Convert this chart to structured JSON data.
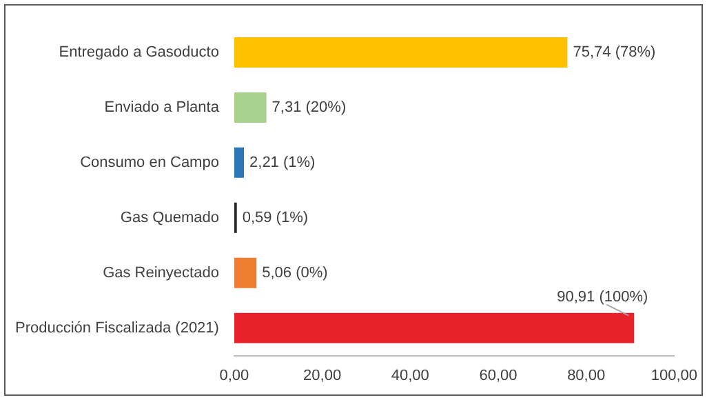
{
  "chart_data": {
    "type": "bar",
    "orientation": "horizontal",
    "categories": [
      "Entregado a Gasoducto",
      "Enviado a Planta",
      "Consumo en Campo",
      "Gas Quemado",
      "Gas Reinyectado",
      "Producción Fiscalizada (2021)"
    ],
    "values": [
      75.74,
      7.31,
      2.21,
      0.59,
      5.06,
      90.91
    ],
    "colors": [
      "#ffc000",
      "#a9d18e",
      "#2e75b6",
      "#262626",
      "#ed7d31",
      "#e8222a"
    ],
    "value_labels": [
      "75,74 (78%)",
      "7,31 (20%)",
      "2,21 (1%)",
      "0,59 (1%)",
      "5,06 (0%)",
      "90,91 (100%)"
    ],
    "xlim": [
      0,
      100
    ],
    "xticks": [
      {
        "value": 0,
        "label": "0,00"
      },
      {
        "value": 20,
        "label": "20,00"
      },
      {
        "value": 40,
        "label": "40,00"
      },
      {
        "value": 60,
        "label": "60,00"
      },
      {
        "value": 80,
        "label": "80,00"
      },
      {
        "value": 100,
        "label": "100,00"
      }
    ],
    "grid": false,
    "legend": false
  }
}
